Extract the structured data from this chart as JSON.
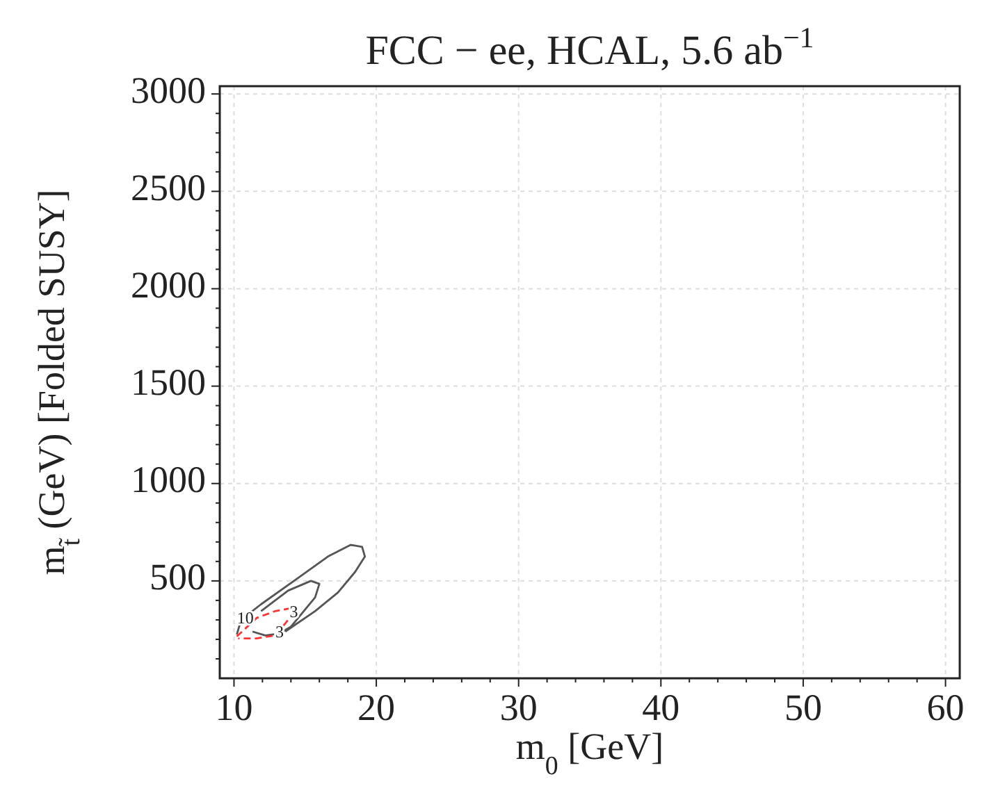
{
  "chart_data": {
    "type": "line",
    "title": "FCC − ee, HCAL, 5.6 ab$^{−1}$",
    "xlabel": "m$_{0}$ [GeV]",
    "ylabel": "m$_{t̃}$ (GeV)    [Folded SUSY]",
    "xlim": [
      9,
      61
    ],
    "ylim": [
      0,
      3040
    ],
    "xticks": [
      10,
      {
        "value": 12,
        "label": null
      },
      {
        "value": 14,
        "label": null
      },
      {
        "value": 16,
        "label": null
      },
      {
        "value": 18,
        "label": null
      },
      20,
      {
        "value": 22,
        "label": null
      },
      {
        "value": 24,
        "label": null
      },
      {
        "value": 26,
        "label": null
      },
      {
        "value": 28,
        "label": null
      },
      30,
      {
        "value": 32,
        "label": null
      },
      {
        "value": 34,
        "label": null
      },
      {
        "value": 36,
        "label": null
      },
      {
        "value": 38,
        "label": null
      },
      40,
      {
        "value": 42,
        "label": null
      },
      {
        "value": 44,
        "label": null
      },
      {
        "value": 46,
        "label": null
      },
      {
        "value": 48,
        "label": null
      },
      50,
      {
        "value": 52,
        "label": null
      },
      {
        "value": 54,
        "label": null
      },
      {
        "value": 56,
        "label": null
      },
      {
        "value": 58,
        "label": null
      },
      60
    ],
    "yticks": [
      {
        "value": 100,
        "label": null
      },
      {
        "value": 200,
        "label": null
      },
      {
        "value": 300,
        "label": null
      },
      {
        "value": 400,
        "label": null
      },
      500,
      {
        "value": 600,
        "label": null
      },
      {
        "value": 700,
        "label": null
      },
      {
        "value": 800,
        "label": null
      },
      {
        "value": 900,
        "label": null
      },
      1000,
      {
        "value": 1100,
        "label": null
      },
      {
        "value": 1200,
        "label": null
      },
      {
        "value": 1300,
        "label": null
      },
      {
        "value": 1400,
        "label": null
      },
      1500,
      {
        "value": 1600,
        "label": null
      },
      {
        "value": 1700,
        "label": null
      },
      {
        "value": 1800,
        "label": null
      },
      {
        "value": 1900,
        "label": null
      },
      2000,
      {
        "value": 2100,
        "label": null
      },
      {
        "value": 2200,
        "label": null
      },
      {
        "value": 2300,
        "label": null
      },
      {
        "value": 2400,
        "label": null
      },
      2500,
      {
        "value": 2600,
        "label": null
      },
      {
        "value": 2700,
        "label": null
      },
      {
        "value": 2800,
        "label": null
      },
      {
        "value": 2900,
        "label": null
      },
      3000
    ],
    "grid": true,
    "line_style": "solid",
    "series": [
      {
        "color": "#555555",
        "x": [
          10.2,
          10.5,
          11.9,
          14.4,
          16.6,
          18.2,
          19.0,
          19.2,
          18.5,
          17.3,
          15.7,
          14.1,
          13.6
        ],
        "values": [
          225,
          300,
          380,
          510,
          625,
          685,
          675,
          625,
          545,
          440,
          345,
          265,
          240
        ]
      },
      {
        "color": "#555555",
        "x": [
          11.3,
          12.2,
          13.2,
          14.0,
          14.4,
          15.7,
          16.0,
          15.4,
          13.8,
          11.9
        ],
        "values": [
          240,
          220,
          230,
          265,
          300,
          415,
          485,
          500,
          450,
          345
        ]
      },
      {
        "color": "#ff3333",
        "line_style": "dashed",
        "x": [
          10.2,
          11.6,
          12.9,
          14.0,
          14.2,
          13.7,
          12.9,
          11.6,
          10.3
        ],
        "values": [
          215,
          310,
          345,
          360,
          335,
          290,
          220,
          205,
          205
        ]
      }
    ],
    "annotations": [
      {
        "text": "10",
        "x": 10.8,
        "y": 300
      },
      {
        "text": "3",
        "x": 13.2,
        "y": 230
      },
      {
        "text": "3",
        "x": 14.2,
        "y": 335
      }
    ]
  }
}
